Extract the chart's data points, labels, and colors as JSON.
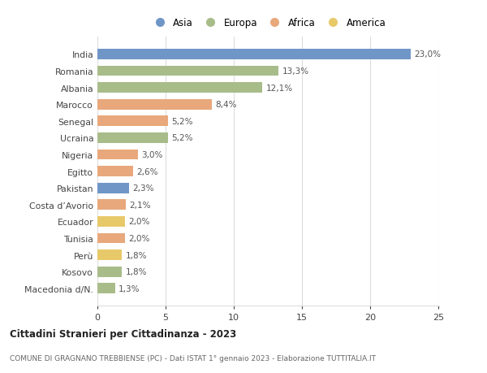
{
  "categories": [
    "India",
    "Romania",
    "Albania",
    "Marocco",
    "Senegal",
    "Ucraina",
    "Nigeria",
    "Egitto",
    "Pakistan",
    "Costa d’Avorio",
    "Ecuador",
    "Tunisia",
    "Perù",
    "Kosovo",
    "Macedonia d/N."
  ],
  "values": [
    23.0,
    13.3,
    12.1,
    8.4,
    5.2,
    5.2,
    3.0,
    2.6,
    2.3,
    2.1,
    2.0,
    2.0,
    1.8,
    1.8,
    1.3
  ],
  "labels": [
    "23,0%",
    "13,3%",
    "12,1%",
    "8,4%",
    "5,2%",
    "5,2%",
    "3,0%",
    "2,6%",
    "2,3%",
    "2,1%",
    "2,0%",
    "2,0%",
    "1,8%",
    "1,8%",
    "1,3%"
  ],
  "continents": [
    "Asia",
    "Europa",
    "Europa",
    "Africa",
    "Africa",
    "Europa",
    "Africa",
    "Africa",
    "Asia",
    "Africa",
    "America",
    "Africa",
    "America",
    "Europa",
    "Europa"
  ],
  "colors": {
    "Asia": "#7096c8",
    "Europa": "#a8bc8a",
    "Africa": "#e8a87c",
    "America": "#e8c96a"
  },
  "legend_order": [
    "Asia",
    "Europa",
    "Africa",
    "America"
  ],
  "title": "Cittadini Stranieri per Cittadinanza - 2023",
  "subtitle": "COMUNE DI GRAGNANO TREBBIENSE (PC) - Dati ISTAT 1° gennaio 2023 - Elaborazione TUTTITALIA.IT",
  "xlim": [
    0,
    25
  ],
  "xticks": [
    0,
    5,
    10,
    15,
    20,
    25
  ],
  "background_color": "#ffffff",
  "grid_color": "#dddddd"
}
